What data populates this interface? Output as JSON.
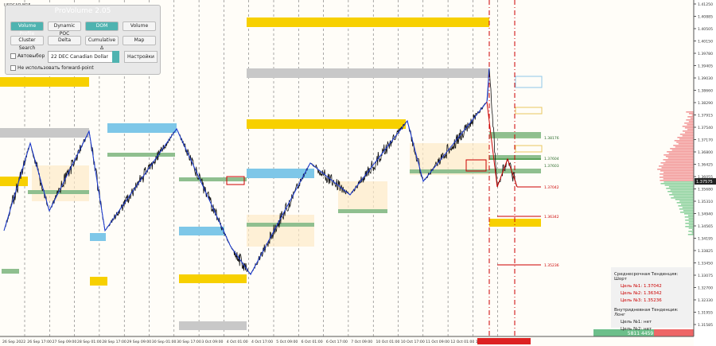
{
  "symbol": "USDCAD,M15",
  "panel": {
    "title": "ProVolume 2.05",
    "buttons": [
      "Volume Profile",
      "Dynamic POC",
      "DOM",
      "Volume",
      "Cluster Search",
      "Delta",
      "Cumulative Δ",
      "Map"
    ],
    "auto_select": "Автовыбор",
    "contract": "22 DEC Canadian Dollar",
    "settings": "Настройки",
    "forward_point": "Не использовать forward-point"
  },
  "price_axis": {
    "labels": [
      "1.41250",
      "1.40885",
      "1.40505",
      "1.40150",
      "1.39780",
      "1.39405",
      "1.39030",
      "1.38660",
      "1.38290",
      "1.37915",
      "1.37540",
      "1.37170",
      "1.36800",
      "1.36425",
      "1.36055",
      "1.35680",
      "1.35310",
      "1.34940",
      "1.34565",
      "1.34195",
      "1.33825",
      "1.33450",
      "1.33075",
      "1.32700",
      "1.32330",
      "1.31955",
      "1.31585",
      "1.31210"
    ],
    "current": "1.37575"
  },
  "time_axis": {
    "labels": [
      "26 Sep 2022",
      "26 Sep 17:00",
      "27 Sep 09:00",
      "28 Sep 01:00",
      "28 Sep 17:00",
      "29 Sep 09:00",
      "30 Sep 01:00",
      "30 Sep 17:00",
      "3 Oct 09:00",
      "4 Oct 01:00",
      "4 Oct 17:00",
      "5 Oct 09:00",
      "6 Oct 01:00",
      "6 Oct 17:00",
      "7 Oct 09:00",
      "10 Oct 01:00",
      "10 Oct 17:00",
      "11 Oct 09:00",
      "12 Oct 01:00",
      "12 Oct 17:00"
    ]
  },
  "level_labels": [
    "1.38176",
    "1.37604",
    "1.37603",
    "1.37042",
    "1.36342",
    "1.35236"
  ],
  "trend_box": {
    "medium_term": "Среднесрочная Тенденция: Шорт",
    "medium_targets": [
      "Цель №1: 1.37042",
      "Цель №2: 1.36342",
      "Цель №3: 1.35236"
    ],
    "intraday": "Внутридневная Тенденция: Лонг",
    "intraday_targets": [
      "Цель №1: нет",
      "Цель №2: нет"
    ]
  },
  "volume_footer": "5811 4459"
}
